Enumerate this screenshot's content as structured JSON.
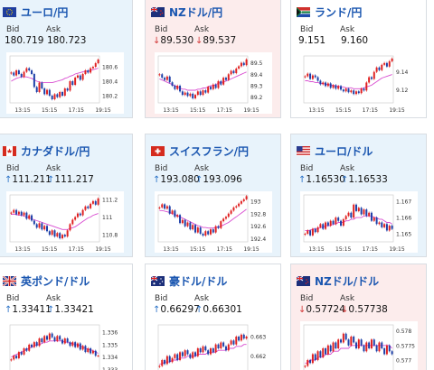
{
  "cards": [
    {
      "name": "ユーロ/円",
      "flag": "eu",
      "tone": "up",
      "bid_label": "Bid",
      "ask_label": "Ask",
      "bid": "180.719",
      "ask": "180.723",
      "dir": "",
      "chart_data": {
        "type": "candlestick",
        "x_ticks": [
          "13:15",
          "15:15",
          "17:15",
          "19:15"
        ],
        "y_ticks": [
          "180.6",
          "180.4",
          "180.2"
        ],
        "ylim": [
          180.1,
          180.75
        ],
        "closes": [
          180.52,
          180.48,
          180.55,
          180.5,
          180.46,
          180.53,
          180.58,
          180.55,
          180.5,
          180.32,
          180.25,
          180.38,
          180.3,
          180.22,
          180.28,
          180.2,
          180.15,
          180.22,
          180.18,
          180.25,
          180.2,
          180.3,
          180.27,
          180.4,
          180.35,
          180.45,
          180.48,
          180.42,
          180.5,
          180.55,
          180.52,
          180.58,
          180.6,
          180.65,
          180.7
        ],
        "ma": [
          180.4,
          180.42,
          180.44,
          180.45,
          180.46,
          180.46,
          180.46,
          180.45,
          180.44,
          180.42,
          180.4,
          180.39,
          180.38,
          180.38,
          180.38,
          180.38,
          180.38,
          180.39,
          180.4,
          180.41,
          180.42,
          180.44,
          180.45,
          180.47,
          180.48,
          180.5,
          180.51,
          180.52,
          180.53,
          180.54,
          180.54,
          180.55,
          180.56,
          180.57,
          180.58
        ]
      }
    },
    {
      "name": "NZドル/円",
      "flag": "nz",
      "tone": "down",
      "bid_label": "Bid",
      "ask_label": "Ask",
      "bid": "89.530",
      "ask": "89.537",
      "dir": "down",
      "chart_data": {
        "type": "candlestick",
        "x_ticks": [
          "13:15",
          "15:15",
          "17:15",
          "19:15"
        ],
        "y_ticks": [
          "89.5",
          "89.4",
          "89.3",
          "89.2"
        ],
        "ylim": [
          89.15,
          89.56
        ],
        "closes": [
          89.4,
          89.37,
          89.35,
          89.38,
          89.33,
          89.3,
          89.27,
          89.3,
          89.25,
          89.22,
          89.24,
          89.21,
          89.23,
          89.19,
          89.22,
          89.25,
          89.22,
          89.26,
          89.24,
          89.29,
          89.27,
          89.31,
          89.28,
          89.34,
          89.31,
          89.37,
          89.35,
          89.4,
          89.43,
          89.41,
          89.45,
          89.47,
          89.5,
          89.48,
          89.53
        ],
        "ma": [
          89.36,
          89.35,
          89.34,
          89.33,
          89.32,
          89.31,
          89.3,
          89.29,
          89.28,
          89.27,
          89.27,
          89.26,
          89.26,
          89.26,
          89.26,
          89.27,
          89.27,
          89.28,
          89.28,
          89.29,
          89.3,
          89.3,
          89.31,
          89.32,
          89.33,
          89.33,
          89.34,
          89.35,
          89.36,
          89.37,
          89.38,
          89.39,
          89.4,
          89.41,
          89.42
        ]
      }
    },
    {
      "name": "ランド/円",
      "flag": "za",
      "tone": "none",
      "bid_label": "Bid",
      "ask_label": "Ask",
      "bid": "9.151",
      "ask": "9.160",
      "dir": "",
      "chart_data": {
        "type": "candlestick",
        "x_ticks": [
          "13:15",
          "15:15",
          "17:15",
          "19:15"
        ],
        "y_ticks": [
          "9.14",
          "9.12"
        ],
        "ylim": [
          9.105,
          9.158
        ],
        "closes": [
          9.135,
          9.138,
          9.132,
          9.136,
          9.134,
          9.13,
          9.126,
          9.128,
          9.124,
          9.127,
          9.122,
          9.125,
          9.121,
          9.124,
          9.12,
          9.118,
          9.121,
          9.117,
          9.119,
          9.115,
          9.118,
          9.116,
          9.121,
          9.119,
          9.128,
          9.134,
          9.132,
          9.14,
          9.145,
          9.142,
          9.148,
          9.15,
          9.146,
          9.152,
          9.155
        ],
        "ma": [
          9.13,
          9.13,
          9.129,
          9.129,
          9.128,
          9.128,
          9.127,
          9.127,
          9.126,
          9.126,
          9.125,
          9.125,
          9.124,
          9.124,
          9.123,
          9.123,
          9.122,
          9.122,
          9.122,
          9.121,
          9.121,
          9.121,
          9.121,
          9.122,
          9.123,
          9.124,
          9.125,
          9.127,
          9.129,
          9.131,
          9.133,
          9.134,
          9.135,
          9.136,
          9.137
        ]
      }
    },
    {
      "name": "カナダドル/円",
      "flag": "ca",
      "tone": "up",
      "bid_label": "Bid",
      "ask_label": "Ask",
      "bid": "111.211",
      "ask": "111.217",
      "dir": "up",
      "chart_data": {
        "type": "candlestick",
        "x_ticks": [
          "13:15",
          "15:15",
          "17:15",
          "19:15"
        ],
        "y_ticks": [
          "111.2",
          "111",
          "110.8"
        ],
        "ylim": [
          110.72,
          111.25
        ],
        "closes": [
          111.05,
          111.08,
          111.03,
          111.06,
          111.02,
          111.05,
          110.98,
          111.02,
          110.96,
          110.92,
          110.88,
          110.93,
          110.86,
          110.9,
          110.84,
          110.8,
          110.85,
          110.78,
          110.82,
          110.76,
          110.8,
          110.78,
          110.85,
          110.92,
          110.97,
          111.0,
          111.04,
          111.02,
          111.08,
          111.12,
          111.1,
          111.15,
          111.18,
          111.14,
          111.21
        ],
        "ma": [
          111.03,
          111.03,
          111.03,
          111.02,
          111.02,
          111.01,
          111.0,
          110.99,
          110.98,
          110.97,
          110.96,
          110.95,
          110.94,
          110.93,
          110.92,
          110.91,
          110.9,
          110.89,
          110.88,
          110.87,
          110.86,
          110.86,
          110.86,
          110.87,
          110.88,
          110.89,
          110.91,
          110.93,
          110.95,
          110.97,
          110.99,
          111.0,
          111.02,
          111.03,
          111.04
        ]
      }
    },
    {
      "name": "スイスフラン/円",
      "flag": "ch",
      "tone": "up",
      "bid_label": "Bid",
      "ask_label": "Ask",
      "bid": "193.080",
      "ask": "193.096",
      "dir": "up",
      "chart_data": {
        "type": "candlestick",
        "x_ticks": [
          "13:15",
          "15:15",
          "17:15",
          "19:15"
        ],
        "y_ticks": [
          "193",
          "192.8",
          "192.6",
          "192.4"
        ],
        "ylim": [
          192.35,
          193.1
        ],
        "closes": [
          192.9,
          192.95,
          192.88,
          192.92,
          192.8,
          192.85,
          192.75,
          192.78,
          192.65,
          192.7,
          192.6,
          192.66,
          192.55,
          192.62,
          192.5,
          192.58,
          192.48,
          192.45,
          192.52,
          192.47,
          192.55,
          192.5,
          192.6,
          192.57,
          192.68,
          192.72,
          192.75,
          192.8,
          192.85,
          192.9,
          192.92,
          192.96,
          193.0,
          193.03,
          193.08
        ],
        "ma": [
          192.85,
          192.85,
          192.84,
          192.83,
          192.82,
          192.8,
          192.79,
          192.77,
          192.75,
          192.73,
          192.71,
          192.69,
          192.67,
          192.65,
          192.63,
          192.61,
          192.6,
          192.58,
          192.58,
          192.57,
          192.57,
          192.57,
          192.58,
          192.59,
          192.6,
          192.62,
          192.64,
          192.66,
          192.69,
          192.72,
          192.75,
          192.78,
          192.81,
          192.84,
          192.87
        ]
      }
    },
    {
      "name": "ユーロ/ドル",
      "flag": "us",
      "tone": "up",
      "bid_label": "Bid",
      "ask_label": "Ask",
      "bid": "1.16530",
      "ask": "1.16533",
      "dir": "up",
      "chart_data": {
        "type": "candlestick",
        "x_ticks": [
          "13:15",
          "15:15",
          "17:15",
          "19:15"
        ],
        "y_ticks": [
          "1.167",
          "1.166",
          "1.165"
        ],
        "ylim": [
          1.1645,
          1.1674
        ],
        "closes": [
          1.165,
          1.1652,
          1.1649,
          1.1653,
          1.1651,
          1.1654,
          1.1656,
          1.1653,
          1.1657,
          1.1655,
          1.1658,
          1.1656,
          1.166,
          1.1658,
          1.1655,
          1.1659,
          1.1661,
          1.1663,
          1.166,
          1.1668,
          1.1664,
          1.1666,
          1.1662,
          1.1665,
          1.1661,
          1.1663,
          1.1658,
          1.166,
          1.1656,
          1.1657,
          1.1654,
          1.1656,
          1.1652,
          1.1655,
          1.1653
        ],
        "ma": [
          1.1652,
          1.1652,
          1.1652,
          1.1653,
          1.1653,
          1.1653,
          1.1654,
          1.1654,
          1.1655,
          1.1655,
          1.1655,
          1.1656,
          1.1656,
          1.1657,
          1.1657,
          1.1657,
          1.1658,
          1.1658,
          1.1659,
          1.1659,
          1.166,
          1.166,
          1.166,
          1.1661,
          1.1661,
          1.1661,
          1.1661,
          1.166,
          1.166,
          1.1659,
          1.1659,
          1.1658,
          1.1657,
          1.1657,
          1.1656
        ]
      }
    },
    {
      "name": "英ポンド/ドル",
      "flag": "uk",
      "tone": "none",
      "bid_label": "Bid",
      "ask_label": "Ask",
      "bid": "1.33411",
      "ask": "1.33421",
      "dir": "up",
      "chart_data": {
        "type": "candlestick",
        "x_ticks": [],
        "y_ticks": [
          "1.336",
          "1.335",
          "1.334",
          "1.333"
        ],
        "ylim": [
          1.3328,
          1.3366
        ],
        "closes": [
          1.3338,
          1.3341,
          1.3339,
          1.3344,
          1.3342,
          1.3347,
          1.3345,
          1.335,
          1.3348,
          1.3352,
          1.3349,
          1.3355,
          1.3352,
          1.3357,
          1.3354,
          1.3359,
          1.3356,
          1.3353,
          1.3357,
          1.3354,
          1.3351,
          1.3355,
          1.3352,
          1.3349,
          1.3352,
          1.3348,
          1.3351,
          1.3346,
          1.3349,
          1.3344,
          1.3347,
          1.3343,
          1.3345,
          1.3341,
          1.3341
        ],
        "ma": [
          1.334,
          1.3341,
          1.3342,
          1.3343,
          1.3344,
          1.3345,
          1.3346,
          1.3347,
          1.3348,
          1.3349,
          1.335,
          1.335,
          1.3351,
          1.3352,
          1.3352,
          1.3353,
          1.3353,
          1.3353,
          1.3353,
          1.3353,
          1.3353,
          1.3352,
          1.3352,
          1.3351,
          1.3351,
          1.335,
          1.335,
          1.3349,
          1.3348,
          1.3347,
          1.3346,
          1.3346,
          1.3345,
          1.3344,
          1.3343
        ]
      }
    },
    {
      "name": "豪ドル/ドル",
      "flag": "au",
      "tone": "none",
      "bid_label": "Bid",
      "ask_label": "Ask",
      "bid": "0.66297",
      "ask": "0.66301",
      "dir": "up",
      "chart_data": {
        "type": "candlestick",
        "x_ticks": [],
        "y_ticks": [
          "0.663",
          "0.662"
        ],
        "ylim": [
          0.6612,
          0.6636
        ],
        "closes": [
          0.6615,
          0.6618,
          0.6616,
          0.662,
          0.6617,
          0.6619,
          0.6621,
          0.6618,
          0.6622,
          0.662,
          0.6623,
          0.6621,
          0.6619,
          0.6622,
          0.662,
          0.6624,
          0.6622,
          0.6625,
          0.6623,
          0.6621,
          0.6624,
          0.6622,
          0.6626,
          0.6624,
          0.6627,
          0.6625,
          0.6623,
          0.6626,
          0.6628,
          0.6626,
          0.663,
          0.6628,
          0.6631,
          0.6629,
          0.663
        ],
        "ma": [
          0.6616,
          0.6616,
          0.6617,
          0.6617,
          0.6617,
          0.6618,
          0.6618,
          0.6618,
          0.6619,
          0.6619,
          0.6619,
          0.662,
          0.662,
          0.662,
          0.662,
          0.6621,
          0.6621,
          0.6621,
          0.6621,
          0.6622,
          0.6622,
          0.6622,
          0.6622,
          0.6623,
          0.6623,
          0.6623,
          0.6623,
          0.6624,
          0.6624,
          0.6624,
          0.6625,
          0.6625,
          0.6625,
          0.6626,
          0.6626
        ]
      }
    },
    {
      "name": "NZドル/ドル",
      "flag": "nz",
      "tone": "down",
      "bid_label": "Bid",
      "ask_label": "Ask",
      "bid": "0.57724",
      "ask": "0.57738",
      "dir": "down",
      "chart_data": {
        "type": "candlestick",
        "x_ticks": [],
        "y_ticks": [
          "0.578",
          "0.5775",
          "0.577"
        ],
        "ylim": [
          0.5766,
          0.5782
        ],
        "closes": [
          0.5768,
          0.577,
          0.5769,
          0.5772,
          0.577,
          0.5773,
          0.5771,
          0.5774,
          0.5772,
          0.5775,
          0.5773,
          0.5776,
          0.5774,
          0.5777,
          0.5776,
          0.5779,
          0.5777,
          0.5775,
          0.5778,
          0.5776,
          0.5774,
          0.5777,
          0.5775,
          0.5773,
          0.5776,
          0.5774,
          0.5777,
          0.5775,
          0.5773,
          0.5776,
          0.5774,
          0.5772,
          0.5775,
          0.5773,
          0.5772
        ],
        "ma": [
          0.5769,
          0.5769,
          0.577,
          0.577,
          0.577,
          0.5771,
          0.5771,
          0.5771,
          0.5772,
          0.5772,
          0.5772,
          0.5773,
          0.5773,
          0.5773,
          0.5774,
          0.5774,
          0.5774,
          0.5774,
          0.5775,
          0.5775,
          0.5775,
          0.5775,
          0.5775,
          0.5775,
          0.5775,
          0.5775,
          0.5775,
          0.5775,
          0.5775,
          0.5775,
          0.5775,
          0.5775,
          0.5775,
          0.5775,
          0.5774
        ]
      }
    }
  ],
  "colors": {
    "up_arrow": "#2a72c7",
    "down_arrow": "#d33a3a",
    "candle_up": "#e02020",
    "candle_down": "#1c3fa8",
    "moving_average": "#d84bd0",
    "pair_name": "#1a56b0"
  }
}
